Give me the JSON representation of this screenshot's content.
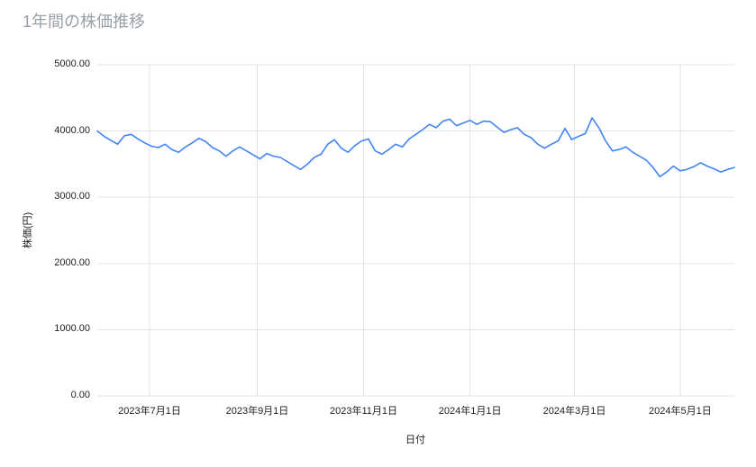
{
  "chart_data": {
    "type": "line",
    "title": "1年間の株価推移",
    "xlabel": "日付",
    "ylabel": "株価(円)",
    "ylim": [
      0,
      5000
    ],
    "y_ticks": [
      "0.00",
      "1000.00",
      "2000.00",
      "3000.00",
      "4000.00",
      "5000.00"
    ],
    "x_ticks": [
      {
        "label": "2023年7月1日",
        "pos": 0.082
      },
      {
        "label": "2023年9月1日",
        "pos": 0.251
      },
      {
        "label": "2023年11月1日",
        "pos": 0.418
      },
      {
        "label": "2024年1月1日",
        "pos": 0.585
      },
      {
        "label": "2024年3月1日",
        "pos": 0.749
      },
      {
        "label": "2024年5月1日",
        "pos": 0.915
      }
    ],
    "grid": true,
    "legend": "none",
    "series": [
      {
        "name": "株価",
        "color": "#4285f4",
        "x_start": "2023-06-01",
        "x_end": "2024-05-31",
        "sampling": "evenly spaced, approx. every 4 days (values estimated from plot)",
        "values": [
          4000,
          3920,
          3860,
          3800,
          3930,
          3950,
          3880,
          3820,
          3770,
          3750,
          3800,
          3720,
          3680,
          3760,
          3820,
          3890,
          3840,
          3750,
          3700,
          3620,
          3700,
          3760,
          3700,
          3640,
          3580,
          3660,
          3620,
          3600,
          3540,
          3480,
          3420,
          3500,
          3600,
          3650,
          3800,
          3870,
          3740,
          3680,
          3780,
          3850,
          3880,
          3700,
          3650,
          3720,
          3800,
          3760,
          3880,
          3950,
          4020,
          4100,
          4050,
          4150,
          4180,
          4080,
          4120,
          4160,
          4100,
          4150,
          4140,
          4060,
          3980,
          4020,
          4050,
          3950,
          3900,
          3800,
          3740,
          3800,
          3850,
          4040,
          3870,
          3920,
          3960,
          4200,
          4050,
          3850,
          3700,
          3720,
          3760,
          3680,
          3620,
          3560,
          3450,
          3310,
          3380,
          3470,
          3400,
          3420,
          3460,
          3520,
          3470,
          3430,
          3380,
          3420,
          3450
        ]
      }
    ]
  },
  "colors": {
    "background": "#ffffff",
    "title_text": "#9aa0a6",
    "axis_text": "#202124",
    "gridline": "#e3e3e3",
    "line": "#4285f4"
  }
}
